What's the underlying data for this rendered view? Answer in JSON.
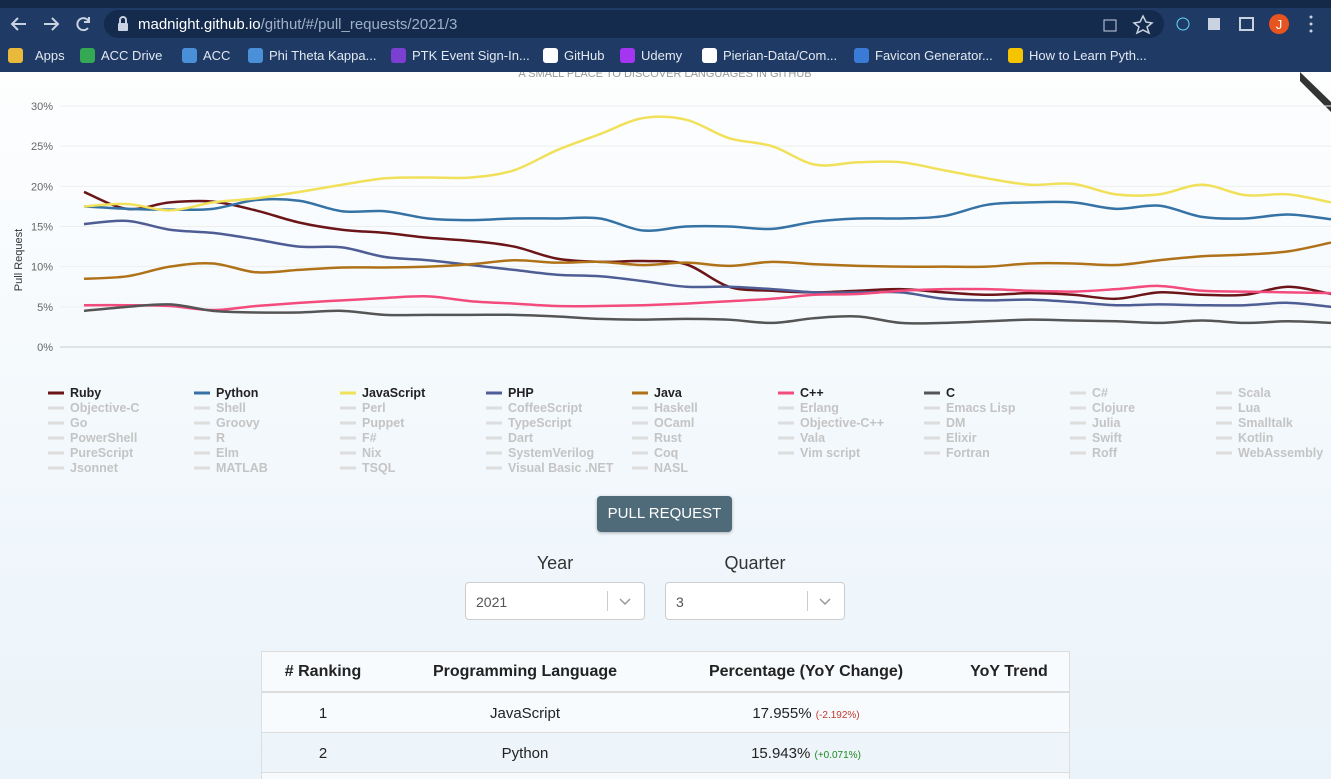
{
  "browser": {
    "url_host": "madnight.github.io",
    "url_path": "/githut/#/pull_requests/2021/3",
    "profile": "J",
    "bookmarks": [
      "Apps",
      "ACC Drive",
      "ACC",
      "Phi Theta Kappa...",
      "PTK Event Sign-In...",
      "GitHub",
      "Udemy",
      "Pierian-Data/Com...",
      "Favicon Generator...",
      "How to Learn Pyth..."
    ]
  },
  "chart_data": {
    "type": "line",
    "subtitle": "A SMALL PLACE TO DISCOVER LANGUAGES IN GITHUB",
    "ylabel": "Pull Request",
    "categories": [
      null,
      null,
      null,
      null,
      null,
      null,
      null,
      null,
      null,
      null,
      null,
      null,
      null,
      null,
      null,
      null,
      null,
      null,
      null,
      null,
      null,
      null,
      null,
      null,
      null,
      null,
      null,
      null,
      null,
      null
    ],
    "ylim": [
      0,
      30
    ],
    "yticks": [
      {
        "value": 0,
        "label": "0%"
      },
      {
        "value": 5,
        "label": "5%"
      },
      {
        "value": 10,
        "label": "10%"
      },
      {
        "value": 15,
        "label": "15%"
      },
      {
        "value": 20,
        "label": "20%"
      },
      {
        "value": 25,
        "label": "25%"
      },
      {
        "value": 30,
        "label": "30%"
      }
    ],
    "grid": true,
    "series": [
      {
        "name": "Ruby",
        "color": "#6b1518",
        "values": [
          19.3,
          17.2,
          18,
          18.1,
          17,
          15.5,
          14.6,
          14.2,
          13.6,
          13.2,
          12.5,
          11,
          10.6,
          10.7,
          10.3,
          7.5,
          7,
          6.8,
          7,
          7.2,
          6.8,
          6.5,
          6.7,
          6.5,
          6,
          6.8,
          6.5,
          6.5,
          7.5,
          6.6
        ]
      },
      {
        "name": "Python",
        "color": "#3572a5",
        "values": [
          17.5,
          17.2,
          17.1,
          17.2,
          18.3,
          18.2,
          16.9,
          16.9,
          16,
          15.8,
          16,
          16,
          16,
          14.5,
          15,
          15,
          14.7,
          15.6,
          16,
          16,
          16.3,
          17.7,
          18,
          18,
          17.2,
          17.6,
          16.2,
          16,
          16.5,
          15.9
        ]
      },
      {
        "name": "JavaScript",
        "color": "#f1e05a",
        "values": [
          17.5,
          17.8,
          17,
          18,
          18.5,
          19.3,
          20.2,
          21,
          21.1,
          21.1,
          22,
          24.5,
          26.5,
          28.5,
          28.3,
          26,
          25,
          22.7,
          23,
          23,
          22,
          21,
          20.2,
          20.3,
          19,
          19,
          20.2,
          18.9,
          19,
          18
        ]
      },
      {
        "name": "PHP",
        "color": "#4f5d95",
        "values": [
          15.3,
          15.7,
          14.6,
          14.2,
          13.4,
          12.5,
          12.4,
          11.2,
          10.8,
          10.2,
          9.6,
          9,
          8.8,
          8.2,
          7.5,
          7.5,
          7.2,
          6.8,
          6.8,
          6.8,
          6,
          5.8,
          5.9,
          5.6,
          5.2,
          5.3,
          5.2,
          5.2,
          5.5,
          5
        ]
      },
      {
        "name": "Java",
        "color": "#b07219",
        "values": [
          8.5,
          8.8,
          10,
          10.4,
          9.3,
          9.6,
          9.9,
          9.9,
          10,
          10.3,
          10.8,
          10.5,
          10.6,
          10.2,
          10.5,
          10.1,
          10.6,
          10.3,
          10.1,
          10,
          10,
          10,
          10.4,
          10.4,
          10.2,
          10.8,
          11.3,
          11.5,
          11.9,
          13
        ]
      },
      {
        "name": "C++",
        "color": "#f34b7d",
        "values": [
          5.2,
          5.2,
          5.1,
          4.6,
          5.1,
          5.5,
          5.8,
          6.1,
          6.3,
          5.7,
          5.4,
          5.1,
          5.1,
          5.2,
          5.4,
          5.7,
          6,
          6.5,
          6.6,
          7,
          7.2,
          7.2,
          7,
          6.9,
          7.2,
          7.6,
          7,
          6.9,
          6.8,
          6.7
        ]
      },
      {
        "name": "C",
        "color": "#555555",
        "values": [
          4.5,
          5,
          5.3,
          4.5,
          4.3,
          4.3,
          4.5,
          4,
          4,
          4,
          4,
          3.8,
          3.5,
          3.4,
          3.5,
          3.4,
          3,
          3.6,
          3.8,
          3,
          3,
          3.2,
          3.4,
          3.3,
          3.2,
          3,
          3.3,
          3,
          3.2,
          3
        ]
      },
      {
        "name": "C#"
      },
      {
        "name": "Scala"
      },
      {
        "name": "Objective-C"
      },
      {
        "name": "Shell"
      },
      {
        "name": "Perl"
      },
      {
        "name": "CoffeeScript"
      },
      {
        "name": "Haskell"
      },
      {
        "name": "Erlang"
      },
      {
        "name": "Emacs Lisp"
      },
      {
        "name": "Clojure"
      },
      {
        "name": "Lua"
      },
      {
        "name": "Go"
      },
      {
        "name": "Groovy"
      },
      {
        "name": "Puppet"
      },
      {
        "name": "TypeScript"
      },
      {
        "name": "OCaml"
      },
      {
        "name": "Objective-C++"
      },
      {
        "name": "DM"
      },
      {
        "name": "Julia"
      },
      {
        "name": "Smalltalk"
      },
      {
        "name": "PowerShell"
      },
      {
        "name": "R"
      },
      {
        "name": "F#"
      },
      {
        "name": "Dart"
      },
      {
        "name": "Rust"
      },
      {
        "name": "Vala"
      },
      {
        "name": "Elixir"
      },
      {
        "name": "Swift"
      },
      {
        "name": "Kotlin"
      },
      {
        "name": "PureScript"
      },
      {
        "name": "Elm"
      },
      {
        "name": "Nix"
      },
      {
        "name": "SystemVerilog"
      },
      {
        "name": "Coq"
      },
      {
        "name": "Vim script"
      },
      {
        "name": "Fortran"
      },
      {
        "name": "Roff"
      },
      {
        "name": "WebAssembly"
      },
      {
        "name": "Jsonnet"
      },
      {
        "name": "MATLAB"
      },
      {
        "name": "TSQL"
      },
      {
        "name": "Visual Basic .NET"
      },
      {
        "name": "NASL"
      }
    ]
  },
  "controls": {
    "button": "PULL REQUEST",
    "year_label": "Year",
    "year": "2021",
    "quarter_label": "Quarter",
    "quarter": "3"
  },
  "table": {
    "headers": [
      "# Ranking",
      "Programming Language",
      "Percentage (YoY Change)",
      "YoY Trend"
    ],
    "rows": [
      [
        "1",
        "JavaScript",
        "17.955%",
        "(-2.192%)"
      ],
      [
        "2",
        "Python",
        "15.943%",
        "(+0.071%)"
      ]
    ]
  }
}
